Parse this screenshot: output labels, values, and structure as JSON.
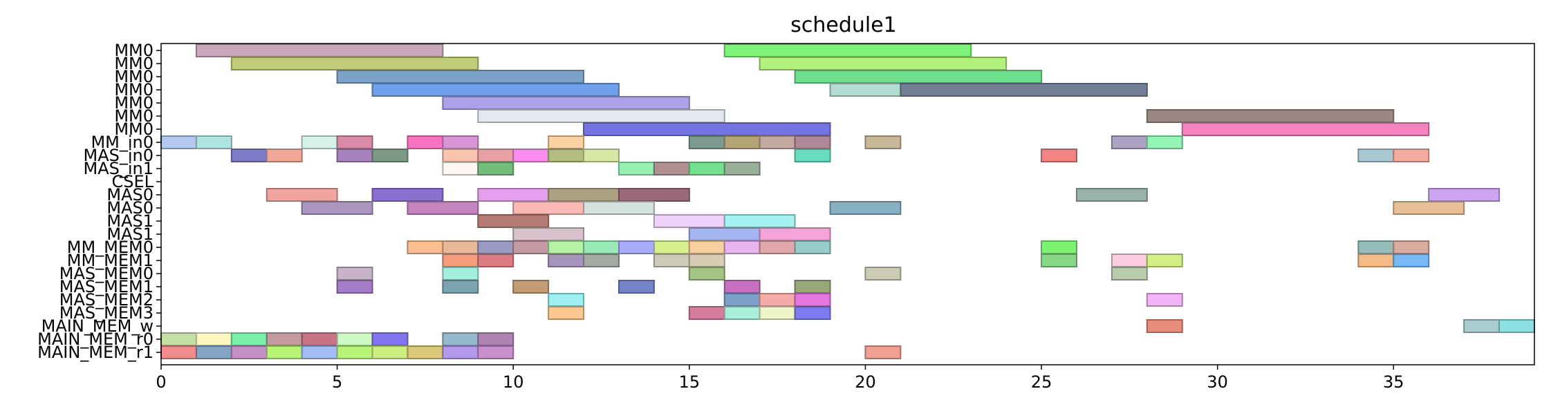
{
  "chart_data": {
    "type": "gantt",
    "title": "schedule1",
    "xlim": [
      0,
      39
    ],
    "x_ticks": [
      0,
      5,
      10,
      15,
      20,
      25,
      30,
      35
    ],
    "grid": false,
    "rows": [
      "MM0",
      "MM0",
      "MM0",
      "MM0",
      "MM0",
      "MM0",
      "MM0",
      "MM_in0",
      "MAS_in0",
      "MAS_in1",
      "CSEL",
      "MAS0",
      "MAS0",
      "MAS1",
      "MAS1",
      "MM_MEM0",
      "MM_MEM1",
      "MAS_MEM0",
      "MAS_MEM1",
      "MAS_MEM2",
      "MAS_MEM3",
      "MAIN_MEM_w",
      "MAIN_MEM_r0",
      "MAIN_MEM_r1"
    ],
    "tasks": [
      {
        "row": 0,
        "start": 1,
        "end": 8,
        "color": "#c8a8ba"
      },
      {
        "row": 0,
        "start": 16,
        "end": 23,
        "color": "#7ef57a"
      },
      {
        "row": 1,
        "start": 2,
        "end": 9,
        "color": "#c0cc78"
      },
      {
        "row": 1,
        "start": 17,
        "end": 24,
        "color": "#b2f17c"
      },
      {
        "row": 2,
        "start": 5,
        "end": 12,
        "color": "#7ca2c8"
      },
      {
        "row": 2,
        "start": 18,
        "end": 25,
        "color": "#6edf8c"
      },
      {
        "row": 3,
        "start": 6,
        "end": 13,
        "color": "#6fa0ec"
      },
      {
        "row": 3,
        "start": 19,
        "end": 26,
        "color": "#b2dcd2"
      },
      {
        "row": 3,
        "start": 21,
        "end": 28,
        "color": "#727f96"
      },
      {
        "row": 4,
        "start": 8,
        "end": 15,
        "color": "#aca2ea"
      },
      {
        "row": 5,
        "start": 9,
        "end": 16,
        "color": "#e4e8f2"
      },
      {
        "row": 5,
        "start": 28,
        "end": 35,
        "color": "#9c8882"
      },
      {
        "row": 6,
        "start": 12,
        "end": 19,
        "color": "#7474e2"
      },
      {
        "row": 6,
        "start": 29,
        "end": 36,
        "color": "#f484c0"
      },
      {
        "row": 7,
        "start": 0,
        "end": 1,
        "color": "#b2c8ec"
      },
      {
        "row": 7,
        "start": 1,
        "end": 2,
        "color": "#b0e4e2"
      },
      {
        "row": 7,
        "start": 4,
        "end": 5,
        "color": "#d6f2ea"
      },
      {
        "row": 7,
        "start": 5,
        "end": 6,
        "color": "#d88aa8"
      },
      {
        "row": 7,
        "start": 7,
        "end": 8,
        "color": "#fa72c2"
      },
      {
        "row": 7,
        "start": 8,
        "end": 9,
        "color": "#d894d4"
      },
      {
        "row": 7,
        "start": 11,
        "end": 12,
        "color": "#fad2a2"
      },
      {
        "row": 7,
        "start": 15,
        "end": 16,
        "color": "#7c9a8e"
      },
      {
        "row": 7,
        "start": 16,
        "end": 17,
        "color": "#b4a474"
      },
      {
        "row": 7,
        "start": 17,
        "end": 18,
        "color": "#c4a8a2"
      },
      {
        "row": 7,
        "start": 18,
        "end": 19,
        "color": "#b08898"
      },
      {
        "row": 7,
        "start": 20,
        "end": 21,
        "color": "#c8b898"
      },
      {
        "row": 7,
        "start": 27,
        "end": 28,
        "color": "#aca2c4"
      },
      {
        "row": 7,
        "start": 28,
        "end": 29,
        "color": "#94f4b4"
      },
      {
        "row": 8,
        "start": 2,
        "end": 3,
        "color": "#7c7cc8"
      },
      {
        "row": 8,
        "start": 3,
        "end": 4,
        "color": "#f2a898"
      },
      {
        "row": 8,
        "start": 5,
        "end": 6,
        "color": "#a882bc"
      },
      {
        "row": 8,
        "start": 6,
        "end": 7,
        "color": "#7c9a86"
      },
      {
        "row": 8,
        "start": 8,
        "end": 9,
        "color": "#fac4ae"
      },
      {
        "row": 8,
        "start": 9,
        "end": 10,
        "color": "#e8a0a4"
      },
      {
        "row": 8,
        "start": 10,
        "end": 11,
        "color": "#fa8cee"
      },
      {
        "row": 8,
        "start": 11,
        "end": 12,
        "color": "#b4bc82"
      },
      {
        "row": 8,
        "start": 12,
        "end": 13,
        "color": "#d8e8a4"
      },
      {
        "row": 8,
        "start": 18,
        "end": 19,
        "color": "#68dcc0"
      },
      {
        "row": 8,
        "start": 25,
        "end": 26,
        "color": "#f28484"
      },
      {
        "row": 8,
        "start": 34,
        "end": 35,
        "color": "#a8c8d4"
      },
      {
        "row": 8,
        "start": 35,
        "end": 36,
        "color": "#f4aca0"
      },
      {
        "row": 9,
        "start": 8,
        "end": 9,
        "color": "#fef6f0"
      },
      {
        "row": 9,
        "start": 9,
        "end": 10,
        "color": "#74bc7c"
      },
      {
        "row": 9,
        "start": 13,
        "end": 14,
        "color": "#98f0b4"
      },
      {
        "row": 9,
        "start": 14,
        "end": 15,
        "color": "#b09090"
      },
      {
        "row": 9,
        "start": 15,
        "end": 16,
        "color": "#74e08e"
      },
      {
        "row": 9,
        "start": 16,
        "end": 17,
        "color": "#98b09a"
      },
      {
        "row": 11,
        "start": 3,
        "end": 5,
        "color": "#f0a4a0"
      },
      {
        "row": 11,
        "start": 6,
        "end": 8,
        "color": "#8c70d0"
      },
      {
        "row": 11,
        "start": 9,
        "end": 11,
        "color": "#e4a0ee"
      },
      {
        "row": 11,
        "start": 11,
        "end": 13,
        "color": "#aca282"
      },
      {
        "row": 11,
        "start": 13,
        "end": 15,
        "color": "#9a6a78"
      },
      {
        "row": 11,
        "start": 26,
        "end": 28,
        "color": "#98b4aa"
      },
      {
        "row": 11,
        "start": 36,
        "end": 38,
        "color": "#cca4f0"
      },
      {
        "row": 12,
        "start": 4,
        "end": 6,
        "color": "#aa96be"
      },
      {
        "row": 12,
        "start": 7,
        "end": 9,
        "color": "#c484c0"
      },
      {
        "row": 12,
        "start": 10,
        "end": 12,
        "color": "#fab8b4"
      },
      {
        "row": 12,
        "start": 12,
        "end": 14,
        "color": "#d4e2de"
      },
      {
        "row": 12,
        "start": 19,
        "end": 21,
        "color": "#88b0c4"
      },
      {
        "row": 12,
        "start": 35,
        "end": 37,
        "color": "#e8c098"
      },
      {
        "row": 13,
        "start": 9,
        "end": 11,
        "color": "#b47c72"
      },
      {
        "row": 13,
        "start": 14,
        "end": 16,
        "color": "#eed2fa"
      },
      {
        "row": 13,
        "start": 16,
        "end": 18,
        "color": "#a4f2f2"
      },
      {
        "row": 14,
        "start": 10,
        "end": 12,
        "color": "#d8c2cc"
      },
      {
        "row": 14,
        "start": 15,
        "end": 17,
        "color": "#a4b4ee"
      },
      {
        "row": 14,
        "start": 17,
        "end": 19,
        "color": "#f4a4d8"
      },
      {
        "row": 15,
        "start": 7,
        "end": 8,
        "color": "#fabe90"
      },
      {
        "row": 15,
        "start": 8,
        "end": 9,
        "color": "#e8b898"
      },
      {
        "row": 15,
        "start": 9,
        "end": 10,
        "color": "#9a9ac4"
      },
      {
        "row": 15,
        "start": 10,
        "end": 11,
        "color": "#c49aa4"
      },
      {
        "row": 15,
        "start": 11,
        "end": 12,
        "color": "#b4f2a4"
      },
      {
        "row": 15,
        "start": 12,
        "end": 13,
        "color": "#98e8b8"
      },
      {
        "row": 15,
        "start": 13,
        "end": 14,
        "color": "#a8acf8"
      },
      {
        "row": 15,
        "start": 14,
        "end": 15,
        "color": "#d8f08c"
      },
      {
        "row": 15,
        "start": 15,
        "end": 16,
        "color": "#f8d0a0"
      },
      {
        "row": 15,
        "start": 16,
        "end": 17,
        "color": "#e8b4f0"
      },
      {
        "row": 15,
        "start": 17,
        "end": 18,
        "color": "#e0a8ac"
      },
      {
        "row": 15,
        "start": 18,
        "end": 19,
        "color": "#98ccc8"
      },
      {
        "row": 15,
        "start": 25,
        "end": 26,
        "color": "#7cf472"
      },
      {
        "row": 15,
        "start": 34,
        "end": 35,
        "color": "#94bcb8"
      },
      {
        "row": 15,
        "start": 35,
        "end": 36,
        "color": "#d8ac9e"
      },
      {
        "row": 16,
        "start": 8,
        "end": 9,
        "color": "#f49c7c"
      },
      {
        "row": 16,
        "start": 9,
        "end": 10,
        "color": "#dc7c84"
      },
      {
        "row": 16,
        "start": 11,
        "end": 12,
        "color": "#a694bc"
      },
      {
        "row": 16,
        "start": 12,
        "end": 13,
        "color": "#a4aaa4"
      },
      {
        "row": 16,
        "start": 14,
        "end": 15,
        "color": "#ccccb8"
      },
      {
        "row": 16,
        "start": 15,
        "end": 16,
        "color": "#d8ccb4"
      },
      {
        "row": 16,
        "start": 25,
        "end": 26,
        "color": "#88d888"
      },
      {
        "row": 16,
        "start": 27,
        "end": 28,
        "color": "#fccce0"
      },
      {
        "row": 16,
        "start": 28,
        "end": 29,
        "color": "#d4f084"
      },
      {
        "row": 16,
        "start": 34,
        "end": 35,
        "color": "#f6bc88"
      },
      {
        "row": 16,
        "start": 35,
        "end": 36,
        "color": "#78b8f4"
      },
      {
        "row": 17,
        "start": 5,
        "end": 6,
        "color": "#c8b4c8"
      },
      {
        "row": 17,
        "start": 8,
        "end": 9,
        "color": "#a4eee0"
      },
      {
        "row": 17,
        "start": 15,
        "end": 16,
        "color": "#a4c484"
      },
      {
        "row": 17,
        "start": 20,
        "end": 21,
        "color": "#ccccb4"
      },
      {
        "row": 17,
        "start": 27,
        "end": 28,
        "color": "#b8ccac"
      },
      {
        "row": 18,
        "start": 5,
        "end": 6,
        "color": "#a47cc8"
      },
      {
        "row": 18,
        "start": 8,
        "end": 9,
        "color": "#7ca4b0"
      },
      {
        "row": 18,
        "start": 10,
        "end": 11,
        "color": "#c49c74"
      },
      {
        "row": 18,
        "start": 13,
        "end": 14,
        "color": "#7484c8"
      },
      {
        "row": 18,
        "start": 16,
        "end": 17,
        "color": "#c870c0"
      },
      {
        "row": 18,
        "start": 18,
        "end": 19,
        "color": "#98a878"
      },
      {
        "row": 19,
        "start": 11,
        "end": 12,
        "color": "#9ef0f2"
      },
      {
        "row": 19,
        "start": 16,
        "end": 17,
        "color": "#7ca0c8"
      },
      {
        "row": 19,
        "start": 17,
        "end": 18,
        "color": "#f4aca8"
      },
      {
        "row": 19,
        "start": 18,
        "end": 19,
        "color": "#e478e0"
      },
      {
        "row": 19,
        "start": 28,
        "end": 29,
        "color": "#f2b4f4"
      },
      {
        "row": 20,
        "start": 11,
        "end": 12,
        "color": "#fac890"
      },
      {
        "row": 20,
        "start": 15,
        "end": 16,
        "color": "#d47c9c"
      },
      {
        "row": 20,
        "start": 16,
        "end": 17,
        "color": "#a8eed8"
      },
      {
        "row": 20,
        "start": 17,
        "end": 18,
        "color": "#ecf4c8"
      },
      {
        "row": 20,
        "start": 18,
        "end": 19,
        "color": "#7c7cf0"
      },
      {
        "row": 21,
        "start": 28,
        "end": 29,
        "color": "#e88c7c"
      },
      {
        "row": 21,
        "start": 37,
        "end": 38,
        "color": "#a8ccd0"
      },
      {
        "row": 21,
        "start": 38,
        "end": 39,
        "color": "#8ce0e4"
      },
      {
        "row": 22,
        "start": 0,
        "end": 1,
        "color": "#c4e0a4"
      },
      {
        "row": 22,
        "start": 1,
        "end": 2,
        "color": "#fef8c0"
      },
      {
        "row": 22,
        "start": 2,
        "end": 3,
        "color": "#78f0a8"
      },
      {
        "row": 22,
        "start": 3,
        "end": 4,
        "color": "#c49ca0"
      },
      {
        "row": 22,
        "start": 4,
        "end": 5,
        "color": "#c87484"
      },
      {
        "row": 22,
        "start": 5,
        "end": 6,
        "color": "#ccf8c4"
      },
      {
        "row": 22,
        "start": 6,
        "end": 7,
        "color": "#8474f0"
      },
      {
        "row": 22,
        "start": 8,
        "end": 9,
        "color": "#94b8cc"
      },
      {
        "row": 22,
        "start": 9,
        "end": 10,
        "color": "#b084b0"
      },
      {
        "row": 23,
        "start": 0,
        "end": 1,
        "color": "#f08c8c"
      },
      {
        "row": 23,
        "start": 1,
        "end": 2,
        "color": "#84a4c4"
      },
      {
        "row": 23,
        "start": 2,
        "end": 3,
        "color": "#c490c4"
      },
      {
        "row": 23,
        "start": 3,
        "end": 4,
        "color": "#b8f474"
      },
      {
        "row": 23,
        "start": 4,
        "end": 5,
        "color": "#a4bcf4"
      },
      {
        "row": 23,
        "start": 5,
        "end": 6,
        "color": "#b8f478"
      },
      {
        "row": 23,
        "start": 6,
        "end": 7,
        "color": "#ccf080"
      },
      {
        "row": 23,
        "start": 7,
        "end": 8,
        "color": "#dcc878"
      },
      {
        "row": 23,
        "start": 8,
        "end": 9,
        "color": "#b498ec"
      },
      {
        "row": 23,
        "start": 9,
        "end": 10,
        "color": "#c890cc"
      },
      {
        "row": 23,
        "start": 20,
        "end": 21,
        "color": "#f0a090"
      }
    ]
  }
}
